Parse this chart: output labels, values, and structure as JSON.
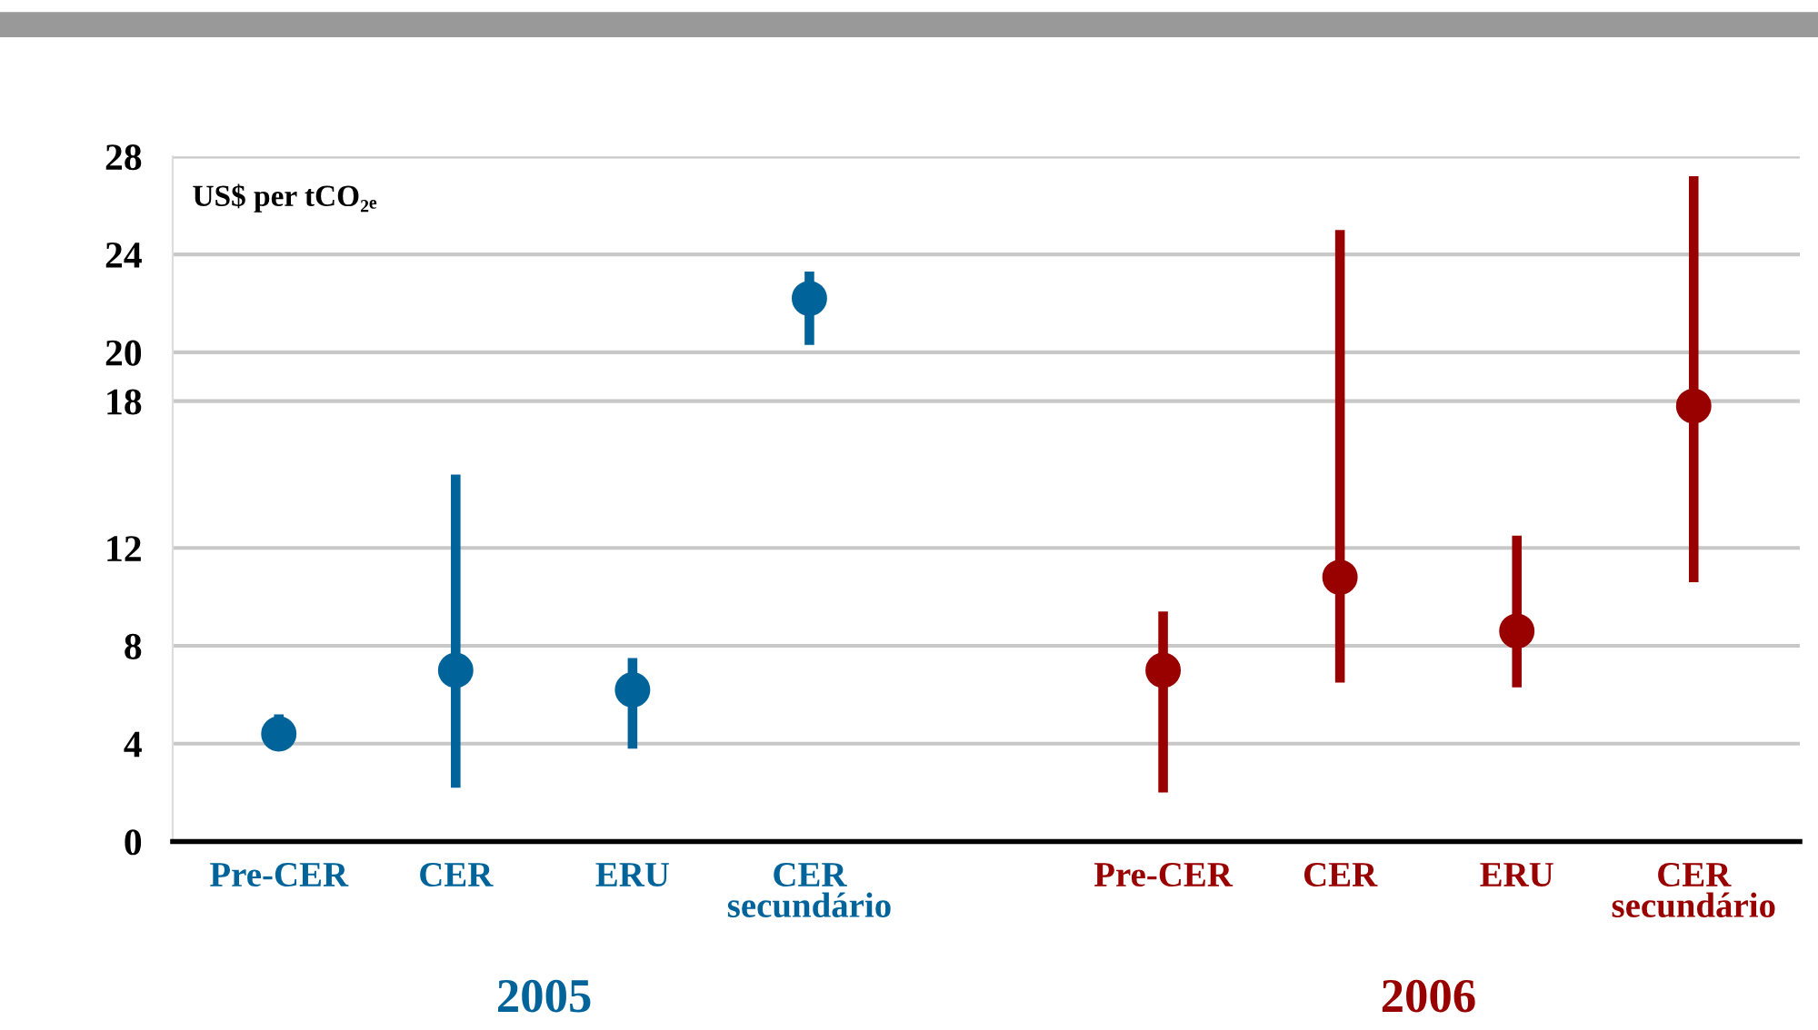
{
  "chart_data": {
    "type": "scatter",
    "ylabel": "US$ per tCO₂ₑ",
    "categories": [
      "Pre-CER",
      "CER",
      "ERU",
      "CER\nsecundário",
      null,
      "Pre-CER",
      "CER",
      "ERU",
      "CER\nsecundário"
    ],
    "series": [
      {
        "name": "2005",
        "color": "#00649a",
        "values": [
          4.4,
          7.0,
          6.2,
          22.2,
          null,
          null,
          null,
          null,
          null
        ],
        "errors": [
          [
            4.4,
            5.2
          ],
          [
            2.2,
            15.0
          ],
          [
            3.8,
            7.5
          ],
          [
            20.3,
            23.3
          ],
          null,
          null,
          null,
          null,
          null
        ]
      },
      {
        "name": "2006",
        "color": "#990000",
        "values": [
          null,
          null,
          null,
          null,
          null,
          7.0,
          10.8,
          8.6,
          17.8
        ],
        "errors": [
          null,
          null,
          null,
          null,
          null,
          [
            2.0,
            9.4
          ],
          [
            6.5,
            25.0
          ],
          [
            6.3,
            12.5
          ],
          [
            10.6,
            27.2
          ]
        ]
      }
    ],
    "ylim": [
      0,
      28
    ],
    "yticks": [
      0,
      4,
      8,
      12,
      18,
      20,
      24,
      28
    ],
    "grid": "y",
    "legend": false,
    "marker": "circle"
  }
}
